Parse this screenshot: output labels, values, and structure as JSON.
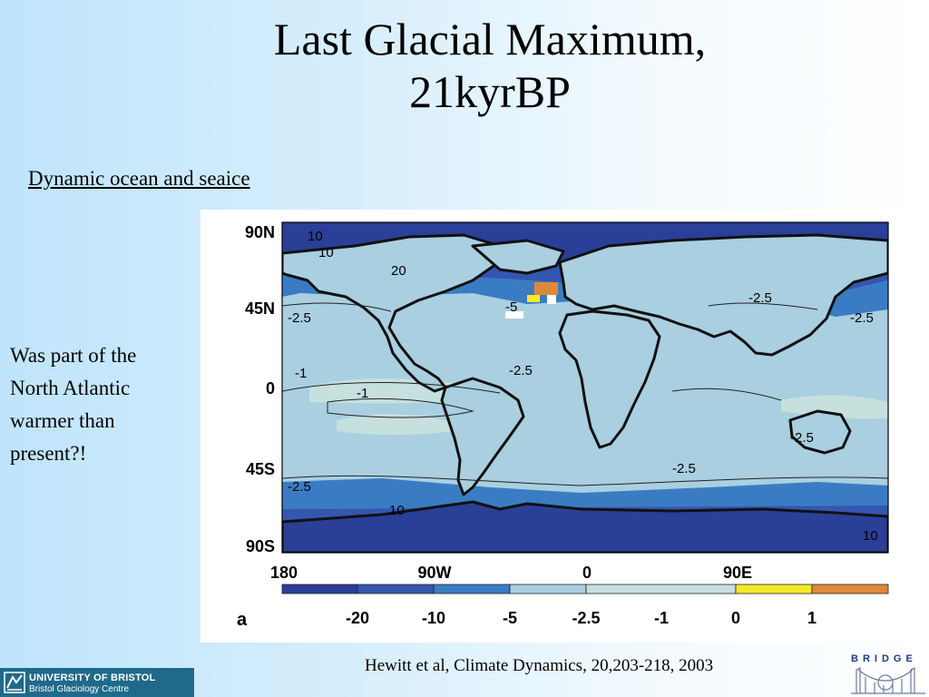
{
  "title_line1": "Last Glacial Maximum,",
  "title_line2": "21kyrBP",
  "subtitle": "Dynamic ocean and seaice",
  "question": [
    "Was part of the",
    "North Atlantic",
    "warmer than",
    "present?!"
  ],
  "citation": "Hewitt et al, Climate Dynamics, 20,203-218, 2003",
  "map": {
    "lat_labels": [
      "90N",
      "45N",
      "0",
      "45S",
      "90S"
    ],
    "lon_labels": [
      "180",
      "90W",
      "0",
      "90E"
    ],
    "panel_label": "a",
    "contour_labels": [
      "10",
      "10",
      "20",
      "-2.5",
      "-1",
      "-1",
      "-2.5",
      "-2.5",
      "-2.5",
      "-2.5",
      "-2.5",
      "-2.5",
      "-5",
      "10",
      "10"
    ],
    "legend": {
      "labels": [
        "-20",
        "-10",
        "-5",
        "-2.5",
        "-1",
        "0",
        "1"
      ],
      "colors": [
        "#2a3f98",
        "#3556b0",
        "#3a7cc4",
        "#a9cfe0",
        "#c6e0de",
        "#f4ea2a",
        "#e0883a"
      ]
    }
  },
  "logo": {
    "line1": "UNIVERSITY OF BRISTOL",
    "line2": "Bristol Glaciology Centre"
  },
  "bridge_logo": "BRIDGE",
  "colors": {
    "deep_blue": "#2a3f98",
    "mid_blue": "#3a7cc4",
    "pale": "#a9cfe0",
    "uob_bar": "#1f6a8a"
  }
}
